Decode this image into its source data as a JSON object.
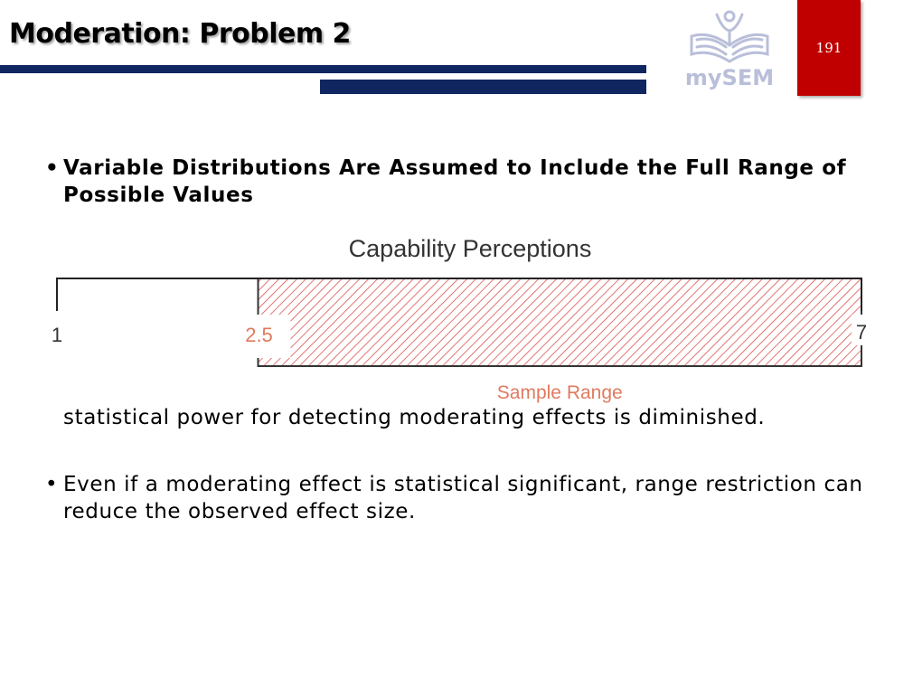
{
  "slide": {
    "title": "Moderation: Problem 2",
    "page_number": "191",
    "logo_text": "mySEM"
  },
  "bullets": [
    {
      "marker": "•",
      "text": "Variable Distributions Are Assumed to Include the Full Range of Possible Values"
    },
    {
      "text": "statistical power for detecting moderating effects is diminished."
    },
    {
      "marker": "•",
      "text": "Even if a moderating effect is statistical significant, range restriction can reduce the observed effect size."
    }
  ],
  "diagram": {
    "title": "Capability Perceptions",
    "scale_min_label": "1",
    "sample_min_label": "2.5",
    "scale_max_label": "7",
    "sample_range_label": "Sample Range",
    "scale_min": 1,
    "scale_max": 7,
    "sample_min": 2.5,
    "sample_max": 7
  },
  "colors": {
    "navy": "#0f2660",
    "red_box": "#c00000",
    "hatch": "#d9534f",
    "sample_label": "#e07a5f",
    "logo": "#b9bfd9"
  }
}
